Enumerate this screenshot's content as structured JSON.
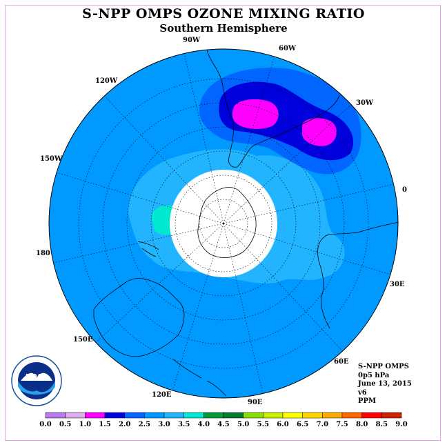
{
  "title": "S-NPP OMPS OZONE MIXING RATIO",
  "subtitle": "Southern Hemisphere",
  "longitude_labels": [
    "90W",
    "60W",
    "30W",
    "0",
    "30E",
    "60E",
    "90E",
    "120E",
    "150E",
    "180",
    "150W",
    "120W"
  ],
  "info": {
    "instrument": "S-NPP OMPS",
    "level": "0p5 hPa",
    "date": "June 13, 2015",
    "version": "v6",
    "units": "PPM"
  },
  "logo": {
    "text": "NOAA"
  },
  "colorbar": {
    "ticks": [
      "0.0",
      "0.5",
      "1.0",
      "1.5",
      "2.0",
      "2.5",
      "3.0",
      "3.5",
      "4.0",
      "4.5",
      "5.0",
      "5.5",
      "6.0",
      "6.5",
      "7.0",
      "7.5",
      "8.0",
      "8.5",
      "9.0"
    ],
    "colors": [
      "#b87af0",
      "#dcb0f0",
      "#ff00ff",
      "#0000dd",
      "#0066ff",
      "#0099ff",
      "#22b4ff",
      "#00e8d0",
      "#009a3a",
      "#007a30",
      "#88e000",
      "#c8ee00",
      "#ffff00",
      "#ffd400",
      "#ffaa00",
      "#ff6600",
      "#ff0000",
      "#cc2200",
      "#8b5a40"
    ]
  }
}
